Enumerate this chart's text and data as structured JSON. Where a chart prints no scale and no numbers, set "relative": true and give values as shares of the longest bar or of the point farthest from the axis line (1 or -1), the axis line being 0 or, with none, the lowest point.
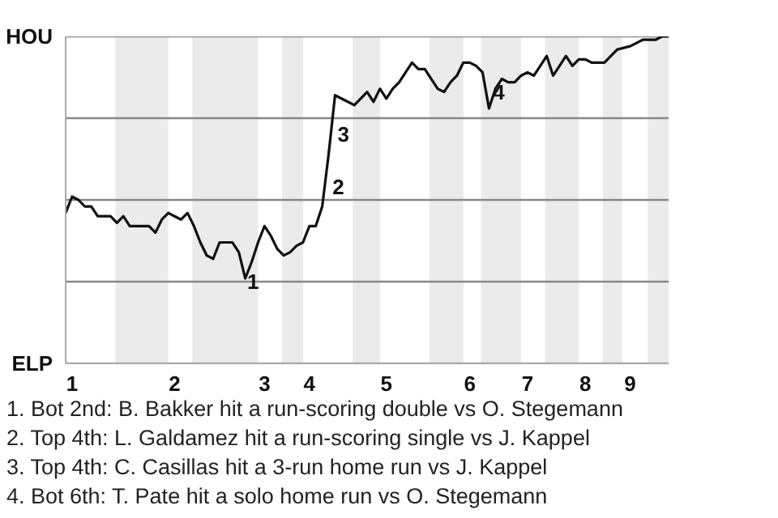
{
  "chart_data": {
    "type": "line",
    "relative": true,
    "categories": [
      null,
      "1",
      null,
      null,
      null,
      null,
      null,
      null,
      null,
      null,
      null,
      null,
      null,
      null,
      null,
      null,
      null,
      "2",
      null,
      null,
      null,
      null,
      null,
      null,
      null,
      null,
      null,
      null,
      null,
      null,
      null,
      "3",
      null,
      null,
      null,
      null,
      null,
      null,
      "4",
      null,
      null,
      null,
      null,
      null,
      null,
      null,
      null,
      null,
      null,
      null,
      "5",
      null,
      null,
      null,
      null,
      null,
      null,
      null,
      null,
      null,
      null,
      null,
      null,
      "6",
      null,
      null,
      null,
      null,
      null,
      null,
      null,
      null,
      "7",
      null,
      null,
      null,
      null,
      null,
      null,
      null,
      null,
      "8",
      null,
      null,
      null,
      null,
      null,
      null,
      "9",
      null,
      null,
      null,
      null,
      null,
      null
    ],
    "marker": "none",
    "line_style": "solid",
    "series": [
      {
        "color": "#111111",
        "values": [
          0.46,
          0.51,
          0.5,
          0.48,
          0.48,
          0.45,
          0.45,
          0.45,
          0.43,
          0.45,
          0.42,
          0.42,
          0.42,
          0.42,
          0.4,
          0.44,
          0.46,
          0.45,
          0.44,
          0.46,
          0.42,
          0.37,
          0.33,
          0.32,
          0.37,
          0.37,
          0.37,
          0.34,
          0.26,
          0.31,
          0.37,
          0.42,
          0.39,
          0.35,
          0.33,
          0.34,
          0.36,
          0.37,
          0.42,
          0.42,
          0.48,
          0.64,
          0.82,
          0.81,
          0.8,
          0.79,
          0.81,
          0.83,
          0.8,
          0.84,
          0.81,
          0.84,
          0.86,
          0.89,
          0.92,
          0.9,
          0.9,
          0.87,
          0.84,
          0.83,
          0.86,
          0.88,
          0.92,
          0.92,
          0.91,
          0.89,
          0.78,
          0.84,
          0.87,
          0.86,
          0.86,
          0.88,
          0.89,
          0.88,
          0.91,
          0.94,
          0.88,
          0.91,
          0.94,
          0.91,
          0.93,
          0.93,
          0.92,
          0.92,
          0.92,
          0.94,
          0.96,
          0.965,
          0.97,
          0.98,
          0.99,
          0.99,
          0.99,
          1.0,
          1.0
        ]
      }
    ],
    "ref_lines": [
      {
        "axis": "y",
        "value": 1,
        "label": "HOU",
        "color": "#888888"
      },
      {
        "axis": "y",
        "value": 0.75,
        "color": "#888888"
      },
      {
        "axis": "y",
        "value": 0.5,
        "color": "#888888"
      },
      {
        "axis": "y",
        "value": 0.25,
        "color": "#888888"
      },
      {
        "axis": "y",
        "value": 0,
        "label": "ELP",
        "color": "#aaaaaa"
      }
    ],
    "annotations": [
      "1",
      "2",
      "3",
      "4",
      "1. Bot 2nd: B. Bakker hit a run-scoring double vs O. Stegemann",
      "2. Top 4th: L. Galdamez hit a run-scoring single vs J. Kappel",
      "3. Top 4th: C. Casillas hit a 3-run home run vs J. Kappel",
      "4. Bot 6th: T. Pate hit a solo home run vs O. Stegemann"
    ]
  }
}
